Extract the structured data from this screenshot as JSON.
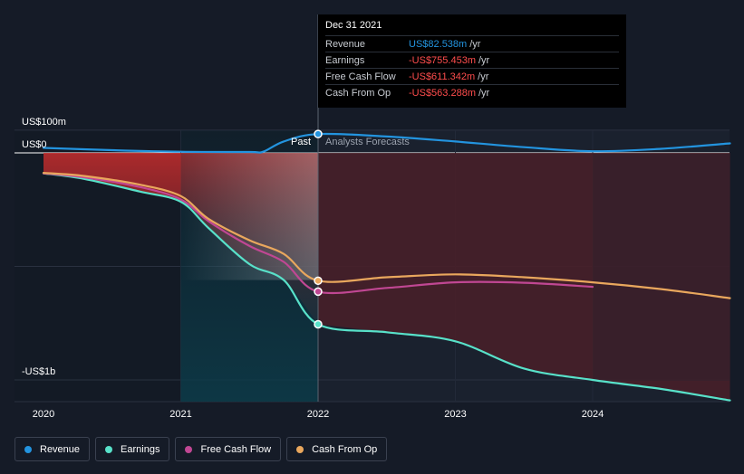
{
  "chart_data": {
    "type": "line",
    "title": "",
    "xlabel": "",
    "ylabel": "",
    "x_ticks": [
      "2020",
      "2021",
      "2022",
      "2023",
      "2024"
    ],
    "x_range": [
      2020.0,
      2025.0
    ],
    "y_range_musd": [
      -1100,
      100
    ],
    "y_tick_labels": [
      {
        "value": 100,
        "label": "US$100m"
      },
      {
        "value": 0,
        "label": "US$0"
      },
      {
        "value": -1000,
        "label": "-US$1b"
      }
    ],
    "y_gridlines_musd": [
      100,
      0,
      -500,
      -1000
    ],
    "past_label": "Past",
    "forecast_label": "Analysts Forecasts",
    "divider_x": 2022.0,
    "series": [
      {
        "name": "Revenue",
        "color": "#2394df",
        "points": [
          [
            2020.0,
            22
          ],
          [
            2020.5,
            12
          ],
          [
            2021.0,
            5
          ],
          [
            2021.5,
            4
          ],
          [
            2021.6,
            5
          ],
          [
            2021.75,
            50
          ],
          [
            2022.0,
            83
          ],
          [
            2022.5,
            72
          ],
          [
            2023.0,
            50
          ],
          [
            2023.5,
            25
          ],
          [
            2024.0,
            7
          ],
          [
            2024.5,
            18
          ],
          [
            2025.0,
            42
          ]
        ]
      },
      {
        "name": "Earnings",
        "color": "#58e1c9",
        "points": [
          [
            2020.0,
            -90
          ],
          [
            2020.3,
            -115
          ],
          [
            2020.7,
            -170
          ],
          [
            2021.0,
            -215
          ],
          [
            2021.2,
            -330
          ],
          [
            2021.5,
            -490
          ],
          [
            2021.75,
            -560
          ],
          [
            2022.0,
            -755
          ],
          [
            2022.5,
            -790
          ],
          [
            2023.0,
            -830
          ],
          [
            2023.5,
            -950
          ],
          [
            2024.0,
            -1000
          ],
          [
            2024.5,
            -1040
          ],
          [
            2025.0,
            -1090
          ]
        ]
      },
      {
        "name": "Free Cash Flow",
        "color": "#c04793",
        "points": [
          [
            2020.0,
            -90
          ],
          [
            2020.3,
            -108
          ],
          [
            2020.7,
            -150
          ],
          [
            2021.0,
            -205
          ],
          [
            2021.2,
            -300
          ],
          [
            2021.5,
            -410
          ],
          [
            2021.75,
            -480
          ],
          [
            2022.0,
            -611
          ],
          [
            2022.5,
            -595
          ],
          [
            2023.0,
            -570
          ],
          [
            2023.5,
            -572
          ],
          [
            2024.0,
            -590
          ]
        ]
      },
      {
        "name": "Cash From Op",
        "color": "#e9a75d",
        "points": [
          [
            2020.0,
            -88
          ],
          [
            2020.3,
            -102
          ],
          [
            2020.7,
            -140
          ],
          [
            2021.0,
            -190
          ],
          [
            2021.2,
            -290
          ],
          [
            2021.5,
            -385
          ],
          [
            2021.75,
            -445
          ],
          [
            2022.0,
            -563
          ],
          [
            2022.5,
            -548
          ],
          [
            2023.0,
            -535
          ],
          [
            2023.5,
            -548
          ],
          [
            2024.0,
            -570
          ],
          [
            2024.5,
            -600
          ],
          [
            2025.0,
            -640
          ]
        ]
      }
    ],
    "highlight": {
      "x": 2022.0,
      "date": "Dec 31 2021"
    }
  },
  "tooltip": {
    "date": "Dec 31 2021",
    "rows": [
      {
        "label": "Revenue",
        "value": "US$82.538m",
        "unit": "/yr",
        "color": "#2394df"
      },
      {
        "label": "Earnings",
        "value": "-US$755.453m",
        "unit": "/yr",
        "color": "#ff4d4d"
      },
      {
        "label": "Free Cash Flow",
        "value": "-US$611.342m",
        "unit": "/yr",
        "color": "#ff4d4d"
      },
      {
        "label": "Cash From Op",
        "value": "-US$563.288m",
        "unit": "/yr",
        "color": "#ff4d4d"
      }
    ]
  },
  "legend": [
    {
      "label": "Revenue",
      "color": "#2394df"
    },
    {
      "label": "Earnings",
      "color": "#58e1c9"
    },
    {
      "label": "Free Cash Flow",
      "color": "#c04793"
    },
    {
      "label": "Cash From Op",
      "color": "#e9a75d"
    }
  ]
}
